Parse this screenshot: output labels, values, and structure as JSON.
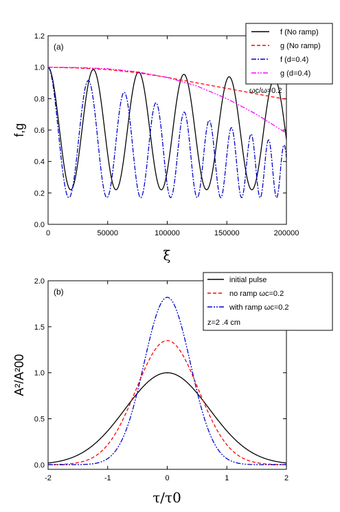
{
  "chart_data": [
    {
      "type": "line",
      "panel_label": "(a)",
      "xlabel": "ξ",
      "ylabel": "f,g",
      "xlim": [
        0,
        200000
      ],
      "ylim": [
        0.0,
        1.2
      ],
      "x_ticks": [
        "0",
        "50000",
        "100000",
        "150000",
        "200000"
      ],
      "y_ticks": [
        "0.0",
        "0.2",
        "0.4",
        "0.6",
        "0.8",
        "1.0",
        "1.2"
      ],
      "legend_position": "top-right",
      "note": "ωc/ω=0.2",
      "series": [
        {
          "name": "f (No ramp)",
          "color": "#000000",
          "style": "solid",
          "oscillation": {
            "period": 38000,
            "min": 0.22,
            "max_start": 1.0,
            "max_end": 0.92
          }
        },
        {
          "name": "g (No ramp)",
          "color": "#ff0000",
          "style": "dash",
          "x": [
            0,
            25000,
            50000,
            75000,
            100000,
            125000,
            150000,
            175000,
            200000
          ],
          "values": [
            1.0,
            0.995,
            0.985,
            0.965,
            0.935,
            0.9,
            0.865,
            0.83,
            0.795
          ]
        },
        {
          "name": "f  (d=0.4)",
          "color": "#0000cc",
          "style": "dashdot",
          "oscillation": {
            "period_start": 36000,
            "period_end": 12000,
            "min": 0.17,
            "max_start": 1.0,
            "max_end": 0.5
          }
        },
        {
          "name": "g  (d=0.4)",
          "color": "#ff00ff",
          "style": "dashdotdot",
          "x": [
            0,
            25000,
            50000,
            75000,
            100000,
            125000,
            150000,
            175000,
            200000
          ],
          "values": [
            1.0,
            0.998,
            0.99,
            0.97,
            0.935,
            0.88,
            0.8,
            0.7,
            0.58
          ]
        }
      ]
    },
    {
      "type": "line",
      "panel_label": "(b)",
      "xlabel": "τ/τ0",
      "ylabel": "A²/A²00",
      "xlim": [
        -2,
        2
      ],
      "ylim": [
        -0.05,
        2.0
      ],
      "x_ticks": [
        "-2",
        "-1",
        "0",
        "1",
        "2"
      ],
      "y_ticks": [
        "0.0",
        "0.5",
        "1.0",
        "1.5",
        "2.0"
      ],
      "legend_position": "top-right",
      "note": "z=2 .4 cm",
      "series": [
        {
          "name": "initial pulse",
          "color": "#000000",
          "style": "solid",
          "shape": "gaussian",
          "peak": 1.0,
          "width": 1.0
        },
        {
          "name": "no ramp ωc=0.2",
          "color": "#ff0000",
          "style": "dash",
          "shape": "gaussian",
          "peak": 1.35,
          "width": 0.74
        },
        {
          "name": "with ramp ωc=0.2",
          "color": "#0000cc",
          "style": "dashdotdot",
          "shape": "gaussian",
          "peak": 1.82,
          "width": 0.55
        }
      ]
    }
  ]
}
